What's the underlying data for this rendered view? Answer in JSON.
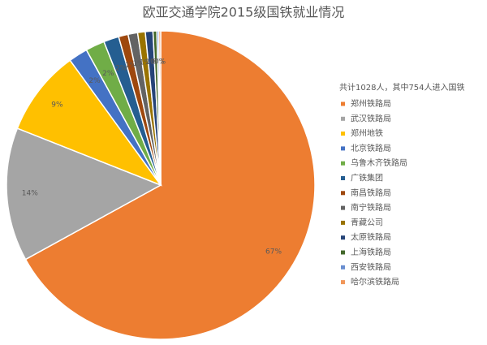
{
  "chart_data": {
    "type": "pie",
    "title": "欧亚交通学院2015级国铁就业情况",
    "legend_title": "共计1028人，其中754人进入国铁",
    "categories": [
      "郑州铁路局",
      "武汉铁路局",
      "郑州地铁",
      "北京铁路局",
      "乌鲁木齐铁路局",
      "广铁集团",
      "南昌铁路局",
      "南宁铁路局",
      "青藏公司",
      "太原铁路局",
      "上海铁路局",
      "西安铁路局",
      "哈尔滨铁路局"
    ],
    "values": [
      67,
      14,
      9,
      2,
      2,
      1.6,
      1,
      1,
      0.8,
      0.8,
      0.4,
      0.2,
      0.2
    ],
    "value_labels": [
      "67%",
      "14%",
      "9%",
      "2%",
      "2%",
      "2%",
      "1%",
      "1%",
      "1%",
      "1%",
      "0%",
      "0%",
      "0%"
    ],
    "colors": [
      "#ED7D31",
      "#A5A5A5",
      "#FFC000",
      "#4472C4",
      "#70AD47",
      "#255E91",
      "#9E480E",
      "#636363",
      "#997300",
      "#264478",
      "#43682B",
      "#698ED0",
      "#F1975A"
    ],
    "legend": "right"
  }
}
